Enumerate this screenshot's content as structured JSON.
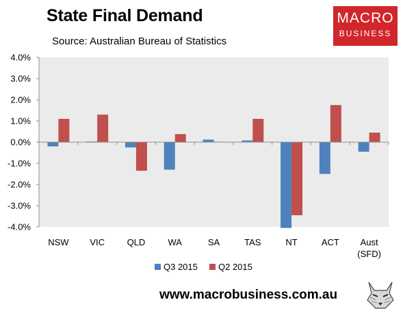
{
  "header": {
    "title": "State Final Demand",
    "subtitle": "Source: Australian Bureau of Statistics"
  },
  "logo": {
    "line1": "MACRO",
    "line2": "BUSINESS"
  },
  "footer": {
    "website": "www.macrobusiness.com.au"
  },
  "colors": {
    "q3": "#4f81bd",
    "q2": "#c0504d",
    "plot_bg": "#ebebeb",
    "logo_bg": "#d1262b"
  },
  "chart_data": {
    "type": "bar",
    "title": "State Final Demand",
    "categories": [
      "NSW",
      "VIC",
      "QLD",
      "WA",
      "SA",
      "TAS",
      "NT",
      "ACT",
      "Aust\n(SFD)"
    ],
    "series": [
      {
        "name": "Q3 2015",
        "color": "#4f81bd",
        "values": [
          -0.2,
          0.03,
          -0.25,
          -1.3,
          0.12,
          0.08,
          -4.05,
          -1.5,
          -0.45
        ]
      },
      {
        "name": "Q2 2015",
        "color": "#c0504d",
        "values": [
          1.1,
          1.3,
          -1.35,
          0.38,
          0.02,
          1.1,
          -3.45,
          1.75,
          0.45
        ]
      }
    ],
    "ylim": [
      -4.0,
      4.0
    ],
    "yticks": [
      "4.0%",
      "3.0%",
      "2.0%",
      "1.0%",
      "0.0%",
      "-1.0%",
      "-2.0%",
      "-3.0%",
      "-4.0%"
    ],
    "legend_position": "bottom",
    "grid": false
  }
}
